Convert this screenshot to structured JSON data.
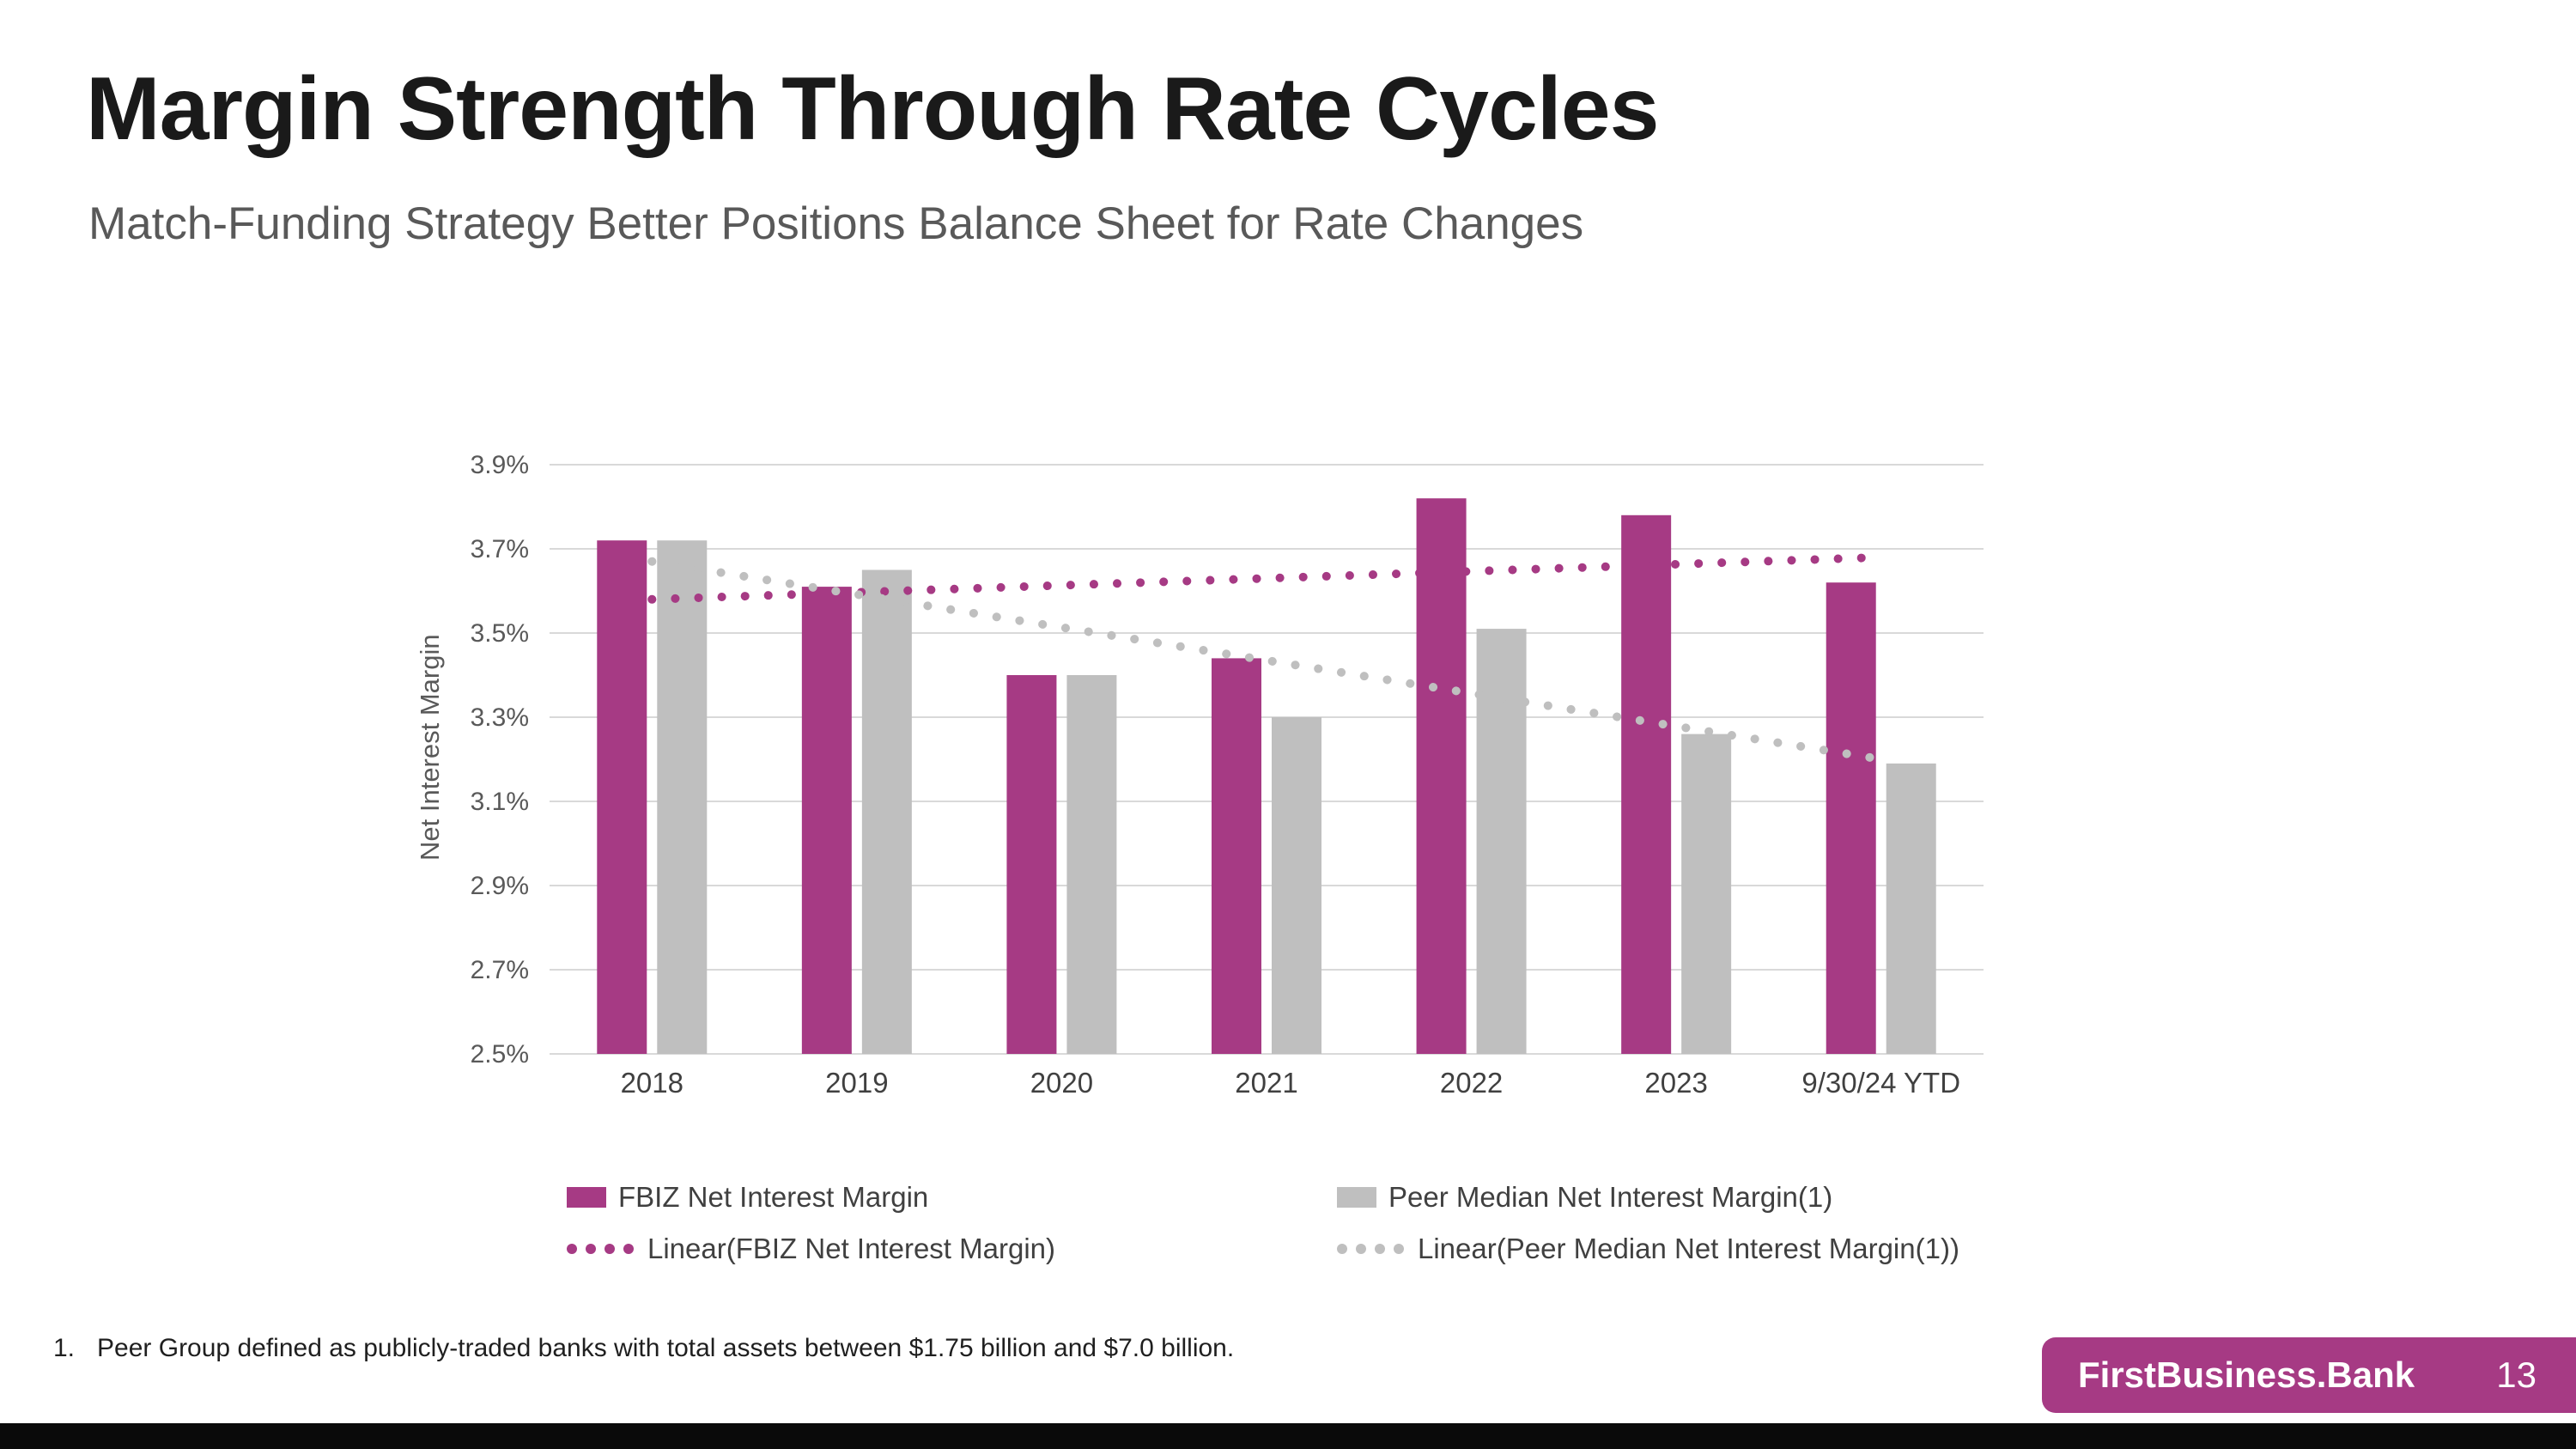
{
  "slide": {
    "title": "Margin Strength Through Rate Cycles",
    "subtitle": "Match-Funding Strategy Better Positions Balance Sheet for Rate Changes",
    "footnote_number": "1.",
    "footnote": "Peer Group defined as publicly-traded banks with total assets between $1.75 billion and $7.0 billion.",
    "footer": {
      "brand": "FirstBusiness.Bank",
      "page_number": "13"
    }
  },
  "colors": {
    "fbiz": "#A63A84",
    "peer": "#BFBFBF",
    "grid": "#D9D9D9",
    "axis_text": "#595959",
    "category_text": "#404040",
    "bottom_bar": "#0A0A0A"
  },
  "chart_data": {
    "type": "bar",
    "title": "",
    "xlabel": "",
    "ylabel": "Net Interest Margin",
    "categories": [
      "2018",
      "2019",
      "2020",
      "2021",
      "2022",
      "2023",
      "9/30/24 YTD"
    ],
    "series": [
      {
        "name": "FBIZ Net Interest Margin",
        "color_key": "fbiz",
        "values": [
          3.72,
          3.61,
          3.4,
          3.44,
          3.82,
          3.78,
          3.62
        ]
      },
      {
        "name": "Peer Median Net Interest Margin(1)",
        "color_key": "peer",
        "values": [
          3.72,
          3.65,
          3.4,
          3.3,
          3.51,
          3.26,
          3.19
        ]
      }
    ],
    "trendlines": [
      {
        "name": "Linear(FBIZ Net Interest Margin)",
        "color_key": "fbiz",
        "start": 3.58,
        "end": 3.68
      },
      {
        "name": "Linear(Peer Median Net Interest Margin(1))",
        "color_key": "peer",
        "start": 3.67,
        "end": 3.2
      }
    ],
    "ylim": [
      2.5,
      3.9
    ],
    "ytick_step": 0.2,
    "ytick_labels": [
      "2.5%",
      "2.7%",
      "2.9%",
      "3.1%",
      "3.3%",
      "3.5%",
      "3.7%",
      "3.9%"
    ],
    "grid": true,
    "legend_position": "bottom"
  }
}
